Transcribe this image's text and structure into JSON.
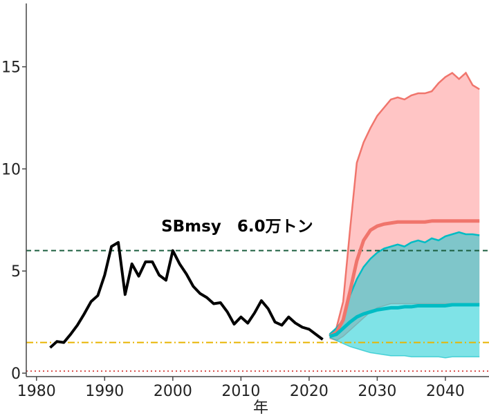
{
  "chart_data": {
    "type": "line",
    "xlabel": "年",
    "annotation": {
      "text": "SBmsy　6.0万トン",
      "x": 2000,
      "y": 7.0
    },
    "xlim": [
      1978.5,
      2046.4
    ],
    "ylim": [
      0,
      18.1
    ],
    "xticks": [
      1980,
      1990,
      2000,
      2010,
      2020,
      2030,
      2040
    ],
    "yticks": [
      0,
      5,
      10,
      15
    ],
    "hlines": [
      {
        "value": 6.0,
        "color": "#1b5e3f",
        "dash": "7,5"
      },
      {
        "value": 1.5,
        "color": "#e8b400",
        "dash": "10,4,2,4"
      },
      {
        "value": 0.1,
        "color": "#d9534f",
        "dash": "2,4"
      }
    ],
    "series": [
      {
        "color": "#000000",
        "x": [
          1982,
          1983,
          1984,
          1985,
          1986,
          1987,
          1988,
          1989,
          1990,
          1991,
          1992,
          1993,
          1994,
          1995,
          1996,
          1997,
          1998,
          1999,
          2000,
          2001,
          2002,
          2003,
          2004,
          2005,
          2006,
          2007,
          2008,
          2009,
          2010,
          2011,
          2012,
          2013,
          2014,
          2015,
          2016,
          2017,
          2018,
          2019,
          2020,
          2021,
          2022
        ],
        "values": [
          1.25,
          1.55,
          1.5,
          1.9,
          2.35,
          2.9,
          3.5,
          3.8,
          4.8,
          6.2,
          6.4,
          3.85,
          5.35,
          4.75,
          5.45,
          5.45,
          4.8,
          4.55,
          6.0,
          5.35,
          4.85,
          4.25,
          3.9,
          3.7,
          3.4,
          3.45,
          3.0,
          2.4,
          2.75,
          2.45,
          2.95,
          3.55,
          3.15,
          2.5,
          2.35,
          2.75,
          2.45,
          2.25,
          2.15,
          1.9,
          1.65
        ]
      },
      {
        "color": "#f0756c",
        "band_color": "#ff8c8c",
        "x": [
          2023,
          2024,
          2025,
          2026,
          2027,
          2028,
          2029,
          2030,
          2031,
          2032,
          2033,
          2034,
          2035,
          2036,
          2037,
          2038,
          2039,
          2040,
          2041,
          2042,
          2043,
          2044,
          2045
        ],
        "values": [
          1.8,
          2.0,
          2.6,
          4.0,
          5.5,
          6.5,
          7.0,
          7.2,
          7.3,
          7.35,
          7.4,
          7.4,
          7.4,
          7.4,
          7.4,
          7.45,
          7.45,
          7.45,
          7.45,
          7.45,
          7.45,
          7.45,
          7.45
        ],
        "upper": [
          1.9,
          2.2,
          3.5,
          7.0,
          10.3,
          11.3,
          12.0,
          12.6,
          13.0,
          13.4,
          13.5,
          13.4,
          13.6,
          13.7,
          13.7,
          13.8,
          14.2,
          14.5,
          14.7,
          14.4,
          14.7,
          14.1,
          13.9
        ],
        "lower": [
          1.7,
          1.6,
          1.8,
          2.1,
          2.4,
          2.7,
          3.0,
          3.2,
          3.3,
          3.4,
          3.4,
          3.4,
          3.4,
          3.4,
          3.4,
          3.4,
          3.4,
          3.4,
          3.4,
          3.4,
          3.4,
          3.4,
          3.4
        ]
      },
      {
        "color": "#00bcc4",
        "band_color": "#00c8cf",
        "x": [
          2023,
          2024,
          2025,
          2026,
          2027,
          2028,
          2029,
          2030,
          2031,
          2032,
          2033,
          2034,
          2035,
          2036,
          2037,
          2038,
          2039,
          2040,
          2041,
          2042,
          2043,
          2044,
          2045
        ],
        "values": [
          1.8,
          1.9,
          2.2,
          2.5,
          2.75,
          2.9,
          3.0,
          3.1,
          3.15,
          3.2,
          3.2,
          3.25,
          3.25,
          3.3,
          3.3,
          3.3,
          3.3,
          3.3,
          3.35,
          3.35,
          3.35,
          3.35,
          3.35
        ],
        "upper": [
          1.9,
          2.2,
          2.6,
          3.8,
          4.6,
          5.2,
          5.6,
          5.9,
          6.1,
          6.2,
          6.3,
          6.2,
          6.4,
          6.5,
          6.4,
          6.6,
          6.5,
          6.7,
          6.8,
          6.9,
          6.8,
          6.8,
          6.75
        ],
        "lower": [
          1.75,
          1.6,
          1.45,
          1.3,
          1.2,
          1.1,
          1.0,
          0.95,
          0.9,
          0.85,
          0.85,
          0.85,
          0.8,
          0.8,
          0.8,
          0.8,
          0.8,
          0.75,
          0.8,
          0.8,
          0.8,
          0.8,
          0.8
        ]
      }
    ]
  }
}
